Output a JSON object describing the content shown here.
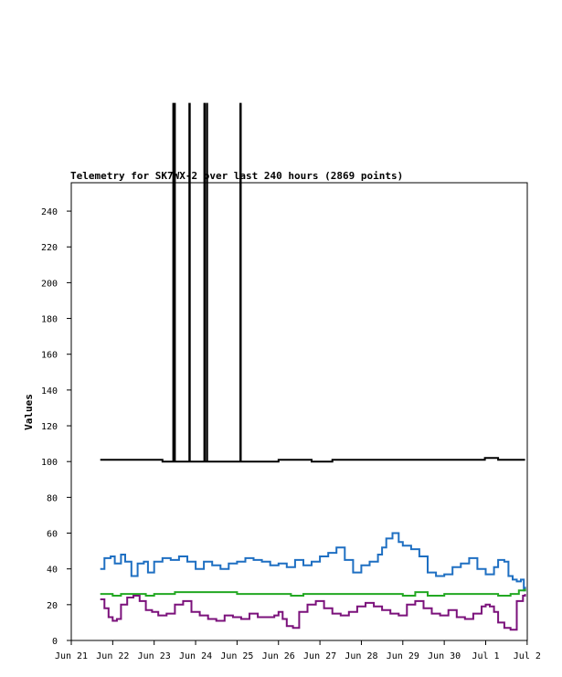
{
  "chart_data": {
    "type": "line",
    "title": "Telemetry for SK7WX-2 over last 240 hours (2869 points)",
    "xlabel": "",
    "ylabel": "Values",
    "ylim": [
      0,
      255
    ],
    "xlim": [
      0,
      11
    ],
    "x_tick_labels": [
      "Jun 21",
      "Jun 22",
      "Jun 23",
      "Jun 24",
      "Jun 25",
      "Jun 26",
      "Jun 27",
      "Jun 28",
      "Jun 29",
      "Jun 30",
      "Jul 1",
      "Jul 2"
    ],
    "y_ticks": [
      0,
      20,
      40,
      60,
      80,
      100,
      120,
      140,
      160,
      180,
      200,
      220,
      240
    ],
    "grid": false,
    "legend": "none",
    "series": [
      {
        "color": "#000000",
        "x": [
          0.7,
          1.0,
          1.5,
          1.85,
          2.2,
          2.45,
          2.46,
          2.47,
          2.5,
          2.55,
          2.84,
          2.85,
          2.86,
          3.0,
          3.2,
          3.21,
          3.22,
          3.26,
          3.27,
          3.28,
          3.5,
          4.07,
          4.08,
          4.09,
          4.5,
          4.7,
          5.0,
          5.3,
          5.8,
          6.1,
          6.3,
          6.5,
          7.0,
          8.0,
          9.0,
          9.7,
          9.98,
          10.3,
          10.6,
          10.95
        ],
        "y": [
          101,
          101,
          101,
          101,
          100,
          100,
          300,
          300,
          100,
          100,
          100,
          300,
          100,
          100,
          100,
          300,
          100,
          100,
          300,
          100,
          100,
          100,
          300,
          100,
          100,
          100,
          101,
          101,
          100,
          100,
          101,
          101,
          101,
          101,
          101,
          101,
          102,
          101,
          101,
          101
        ]
      },
      {
        "color": "#1e6fc2",
        "x": [
          0.7,
          0.8,
          0.95,
          1.05,
          1.2,
          1.3,
          1.45,
          1.6,
          1.75,
          1.85,
          2.0,
          2.2,
          2.4,
          2.6,
          2.8,
          3.0,
          3.2,
          3.4,
          3.6,
          3.8,
          4.0,
          4.2,
          4.4,
          4.6,
          4.8,
          5.0,
          5.2,
          5.4,
          5.6,
          5.8,
          6.0,
          6.2,
          6.4,
          6.6,
          6.8,
          7.0,
          7.2,
          7.4,
          7.5,
          7.6,
          7.75,
          7.9,
          8.0,
          8.2,
          8.4,
          8.6,
          8.8,
          9.0,
          9.2,
          9.4,
          9.6,
          9.8,
          10.0,
          10.2,
          10.3,
          10.45,
          10.55,
          10.65,
          10.75,
          10.85,
          10.92,
          10.95
        ],
        "y": [
          40,
          46,
          47,
          43,
          48,
          44,
          36,
          43,
          44,
          38,
          44,
          46,
          45,
          47,
          44,
          40,
          44,
          42,
          40,
          43,
          44,
          46,
          45,
          44,
          42,
          43,
          41,
          45,
          42,
          44,
          47,
          49,
          52,
          45,
          38,
          42,
          44,
          48,
          52,
          57,
          60,
          55,
          53,
          51,
          47,
          38,
          36,
          37,
          41,
          43,
          46,
          40,
          37,
          41,
          45,
          44,
          36,
          34,
          33,
          34,
          28,
          30
        ]
      },
      {
        "color": "#22a822",
        "x": [
          0.7,
          1.0,
          1.2,
          1.5,
          1.8,
          2.0,
          2.5,
          3.0,
          3.5,
          4.0,
          4.5,
          5.0,
          5.3,
          5.6,
          6.0,
          6.5,
          7.0,
          7.5,
          8.0,
          8.3,
          8.6,
          9.0,
          9.5,
          10.0,
          10.3,
          10.6,
          10.8,
          10.95
        ],
        "y": [
          26,
          25,
          26,
          26,
          25,
          26,
          27,
          27,
          27,
          26,
          26,
          26,
          25,
          26,
          26,
          26,
          26,
          26,
          25,
          27,
          25,
          26,
          26,
          26,
          25,
          26,
          28,
          29
        ]
      },
      {
        "color": "#7b117b",
        "x": [
          0.7,
          0.8,
          0.9,
          1.0,
          1.1,
          1.2,
          1.35,
          1.5,
          1.65,
          1.8,
          1.95,
          2.1,
          2.3,
          2.5,
          2.7,
          2.9,
          3.1,
          3.3,
          3.5,
          3.7,
          3.9,
          4.1,
          4.3,
          4.5,
          4.7,
          4.9,
          5.0,
          5.1,
          5.2,
          5.35,
          5.5,
          5.7,
          5.9,
          6.1,
          6.3,
          6.5,
          6.7,
          6.9,
          7.1,
          7.3,
          7.5,
          7.7,
          7.9,
          8.1,
          8.3,
          8.5,
          8.7,
          8.9,
          9.1,
          9.3,
          9.5,
          9.7,
          9.9,
          10.0,
          10.1,
          10.2,
          10.3,
          10.45,
          10.6,
          10.75,
          10.9,
          10.95
        ],
        "y": [
          23,
          18,
          13,
          11,
          12,
          20,
          24,
          25,
          22,
          17,
          16,
          14,
          15,
          20,
          22,
          16,
          14,
          12,
          11,
          14,
          13,
          12,
          15,
          13,
          13,
          14,
          16,
          12,
          8,
          7,
          16,
          20,
          22,
          18,
          15,
          14,
          16,
          19,
          21,
          19,
          17,
          15,
          14,
          20,
          22,
          18,
          15,
          14,
          17,
          13,
          12,
          15,
          19,
          20,
          19,
          16,
          10,
          7,
          6,
          22,
          25,
          26
        ]
      }
    ]
  }
}
